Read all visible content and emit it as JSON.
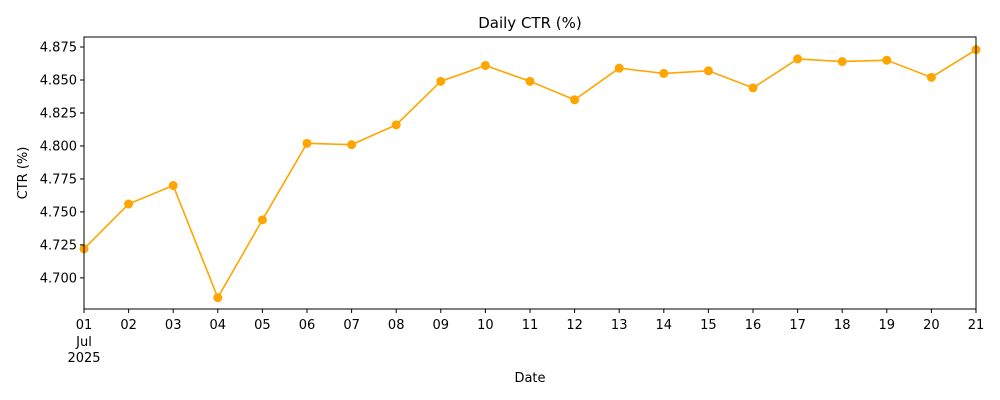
{
  "chart_data": {
    "type": "line",
    "title": "Daily CTR (%)",
    "xlabel": "Date",
    "ylabel": "CTR (%)",
    "x": [
      "2025-07-01",
      "2025-07-02",
      "2025-07-03",
      "2025-07-04",
      "2025-07-05",
      "2025-07-06",
      "2025-07-07",
      "2025-07-08",
      "2025-07-09",
      "2025-07-10",
      "2025-07-11",
      "2025-07-12",
      "2025-07-13",
      "2025-07-14",
      "2025-07-15",
      "2025-07-16",
      "2025-07-17",
      "2025-07-18",
      "2025-07-19",
      "2025-07-20",
      "2025-07-21"
    ],
    "x_tick_labels": [
      "01",
      "02",
      "03",
      "04",
      "05",
      "06",
      "07",
      "08",
      "09",
      "10",
      "11",
      "12",
      "13",
      "14",
      "15",
      "16",
      "17",
      "18",
      "19",
      "20",
      "21"
    ],
    "x_tick_sub_month": "Jul",
    "x_tick_sub_year": "2025",
    "series": [
      {
        "values": [
          4.722,
          4.756,
          4.77,
          4.685,
          4.744,
          4.802,
          4.801,
          4.816,
          4.849,
          4.861,
          4.849,
          4.835,
          4.859,
          4.855,
          4.857,
          4.844,
          4.866,
          4.864,
          4.865,
          4.852,
          4.873
        ],
        "color": "#ffa500"
      }
    ],
    "ylim": [
      4.6764,
      4.8826
    ],
    "y_ticks": [
      4.7,
      4.725,
      4.75,
      4.775,
      4.8,
      4.825,
      4.85,
      4.875
    ],
    "y_tick_labels": [
      "4.700",
      "4.725",
      "4.750",
      "4.775",
      "4.800",
      "4.825",
      "4.850",
      "4.875"
    ],
    "grid": false,
    "legend": "none",
    "marker": "circle"
  }
}
